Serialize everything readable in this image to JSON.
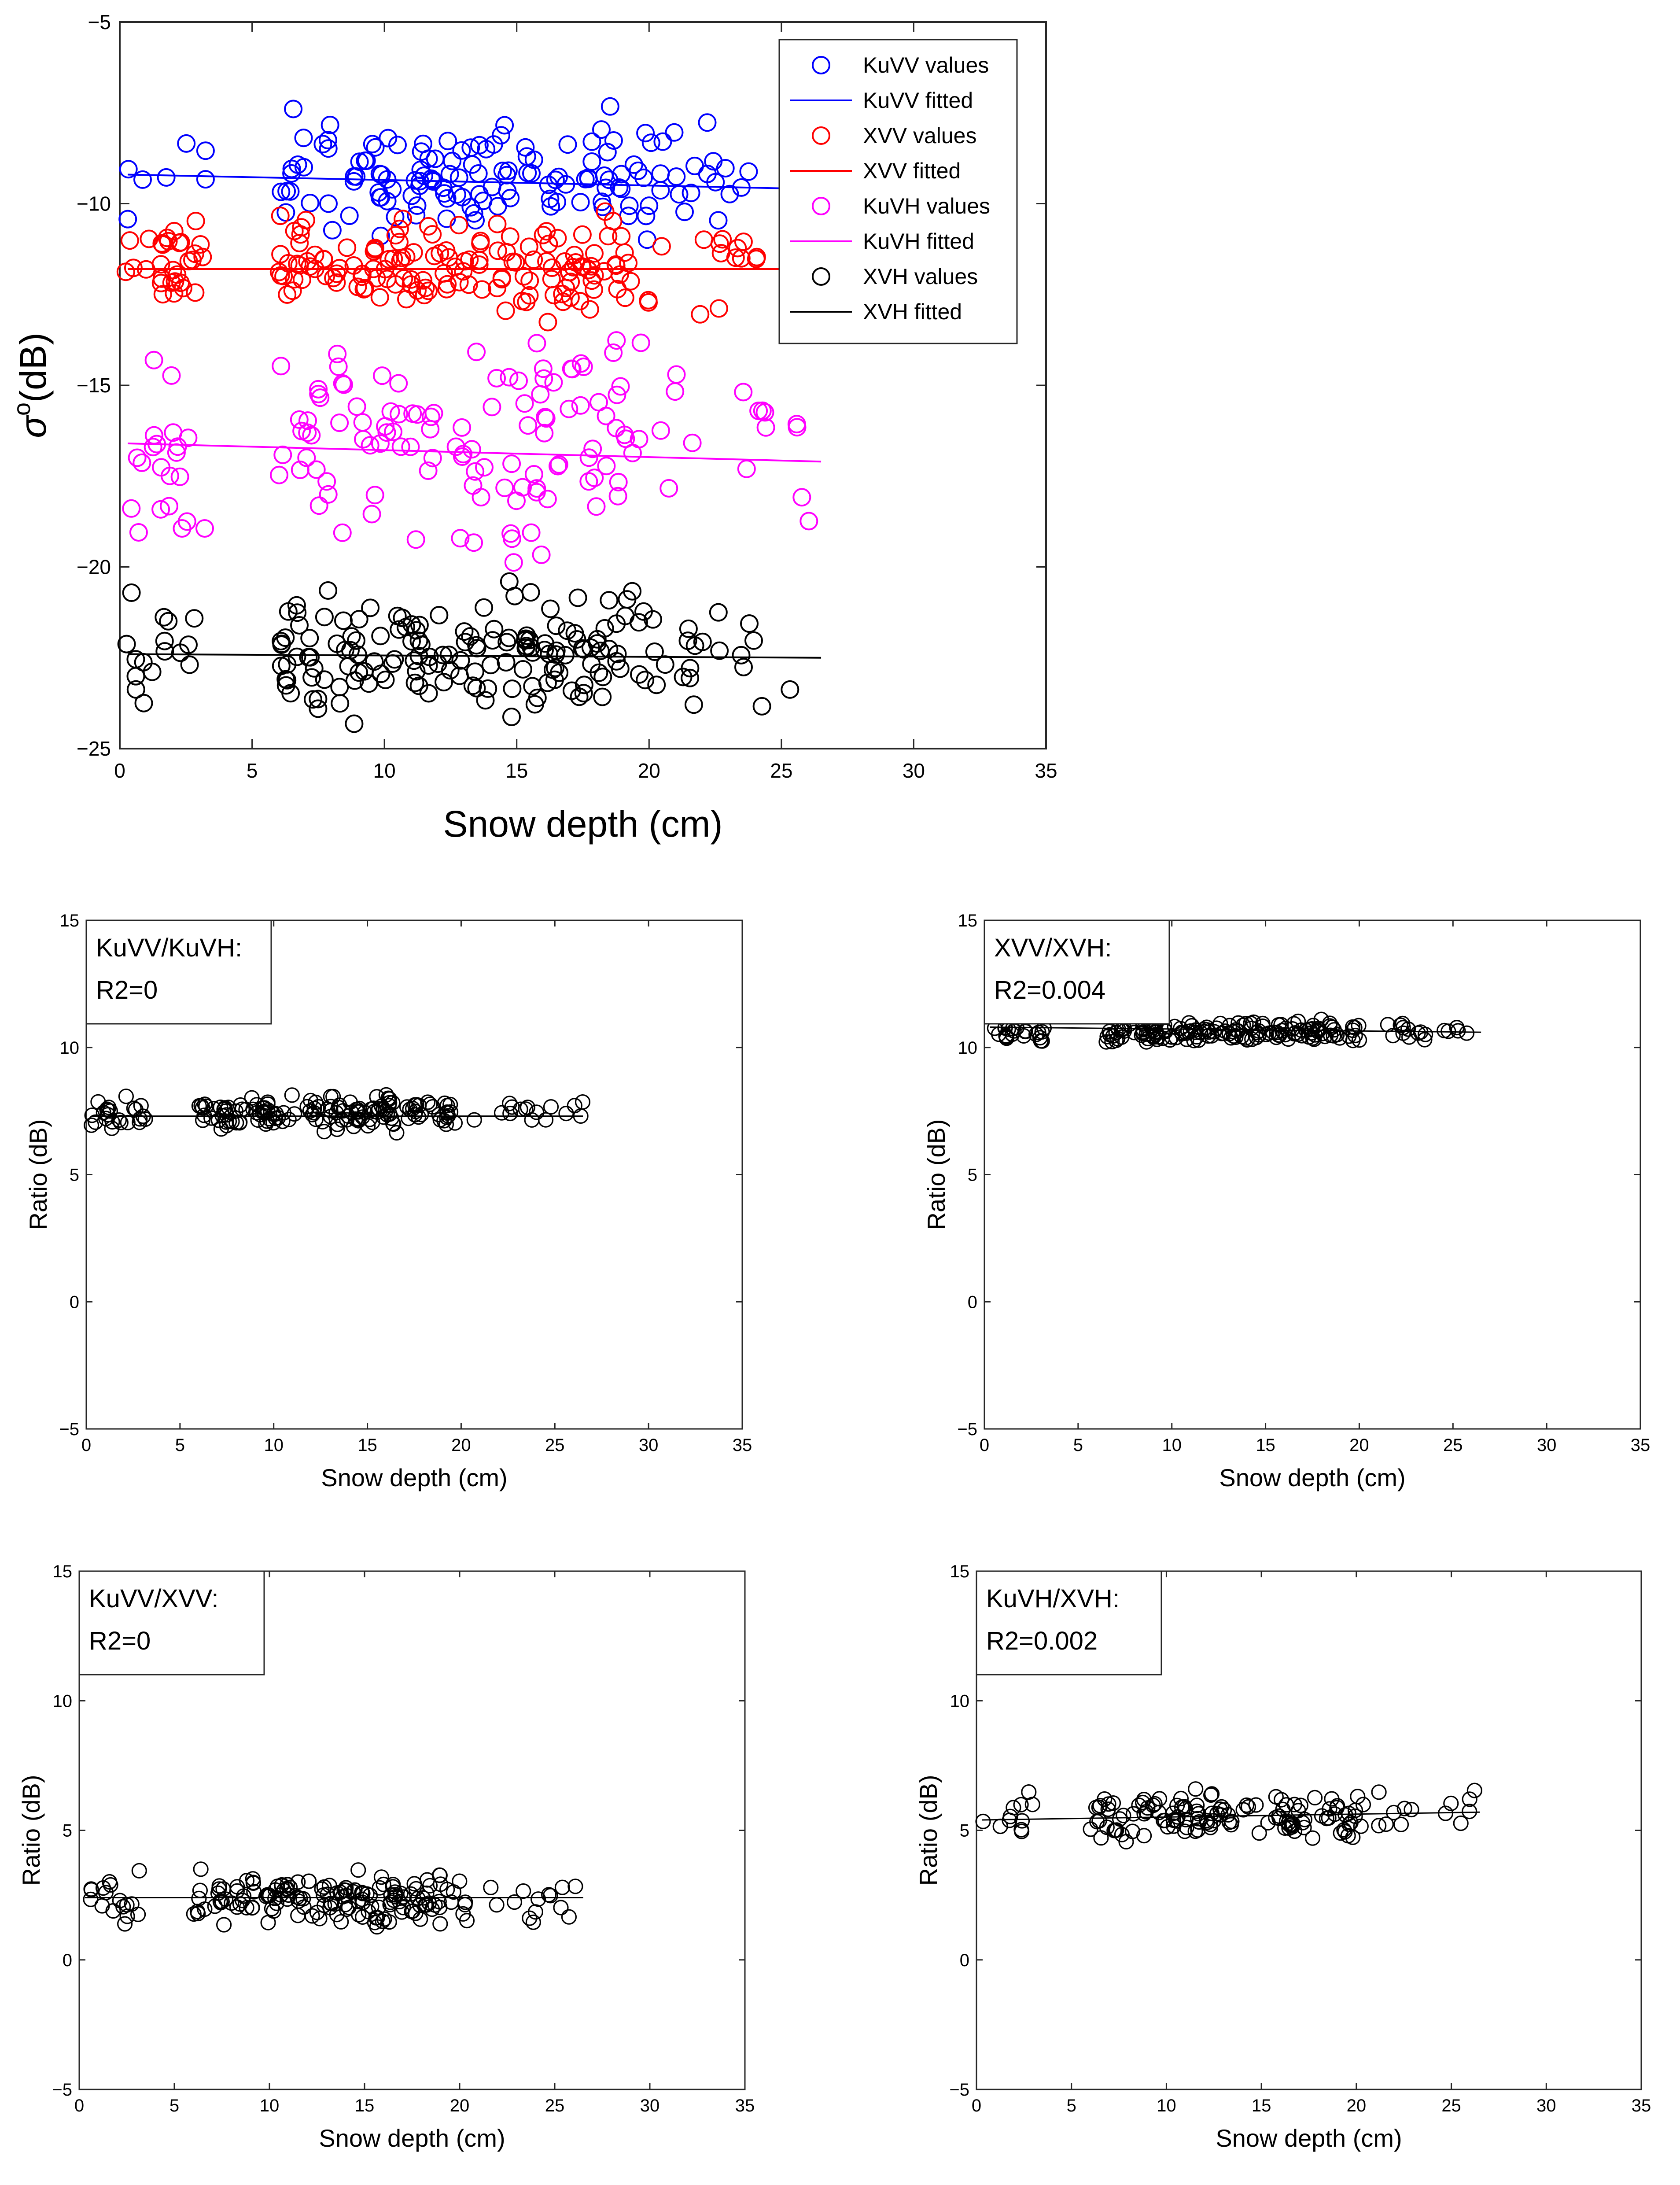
{
  "chart_data": [
    {
      "id": "main",
      "type": "scatter",
      "xlabel": "Snow depth (cm)",
      "ylabel_symbol": "σ",
      "ylabel_superscript": "o",
      "ylabel_unit": "(dB)",
      "xlim": [
        0,
        35
      ],
      "ylim": [
        -25,
        -5
      ],
      "xticks": [
        "0",
        "5",
        "10",
        "15",
        "20",
        "25",
        "30",
        "35"
      ],
      "yticks": [
        "-25",
        "-20",
        "-15",
        "-10",
        "-5"
      ],
      "legend_position": "top-right",
      "colors": {
        "KuVV": "#0000ff",
        "XVV": "#ff0000",
        "KuVH": "#ff00ff",
        "XVH": "#000000"
      },
      "legend": [
        "KuVV values",
        "KuVV fitted",
        "XVV values",
        "XVV fitted",
        "KuVH values",
        "KuVH fitted",
        "XVH values",
        "XVH fitted"
      ],
      "series": [
        {
          "name": "KuVV values",
          "key": "KuVV",
          "kind": "points",
          "x_range": [
            0.3,
            24
          ],
          "y_mean": -9.3,
          "y_spread": 2.2,
          "n": 150,
          "seed": 11
        },
        {
          "name": "KuVV fitted",
          "key": "KuVV",
          "kind": "line",
          "x": [
            0.3,
            26.5
          ],
          "y": [
            -9.2,
            -9.6
          ]
        },
        {
          "name": "XVV values",
          "key": "XVV",
          "kind": "points",
          "x_range": [
            0.2,
            24.1
          ],
          "y_mean": -11.7,
          "y_spread": 1.8,
          "n": 190,
          "seed": 23
        },
        {
          "name": "XVV fitted",
          "key": "XVV",
          "kind": "line",
          "x": [
            0.3,
            26.5
          ],
          "y": [
            -11.8,
            -11.8
          ]
        },
        {
          "name": "KuVH values",
          "key": "KuVH",
          "kind": "points",
          "x_range": [
            0.3,
            26.5
          ],
          "y_mean": -16.5,
          "y_spread": 4.0,
          "n": 150,
          "seed": 37
        },
        {
          "name": "KuVH fitted",
          "key": "KuVH",
          "kind": "line",
          "x": [
            0.3,
            26.5
          ],
          "y": [
            -16.6,
            -17.1
          ]
        },
        {
          "name": "XVH values",
          "key": "XVH",
          "kind": "points",
          "x_range": [
            0.2,
            26.5
          ],
          "y_mean": -22.4,
          "y_spread": 2.4,
          "n": 190,
          "seed": 53
        },
        {
          "name": "XVH fitted",
          "key": "XVH",
          "kind": "line",
          "x": [
            0.3,
            26.5
          ],
          "y": [
            -22.4,
            -22.5
          ]
        }
      ]
    },
    {
      "id": "kuvv_kuvh",
      "type": "scatter",
      "annotation_name": "KuVV/KuVH:",
      "annotation_r2": "R2=0",
      "xlabel": "Snow depth (cm)",
      "ylabel": "Ratio (dB)",
      "xlim": [
        0,
        35
      ],
      "ylim": [
        -5,
        15
      ],
      "xticks": [
        "0",
        "5",
        "10",
        "15",
        "20",
        "25",
        "30",
        "35"
      ],
      "yticks": [
        "-5",
        "0",
        "5",
        "10",
        "15"
      ],
      "series": [
        {
          "name": "values",
          "kind": "points",
          "x_range": [
            0.2,
            26.5
          ],
          "y_mean": 7.4,
          "y_spread": 1.0,
          "n": 190,
          "seed": 71
        },
        {
          "name": "fitted",
          "kind": "line",
          "x": [
            0.3,
            26.5
          ],
          "y": [
            7.3,
            7.3
          ]
        }
      ]
    },
    {
      "id": "xvv_xvh",
      "type": "scatter",
      "annotation_name": "XVV/XVH:",
      "annotation_r2": "R2=0.004",
      "xlabel": "Snow depth (cm)",
      "ylabel": "Ratio (dB)",
      "xlim": [
        0,
        35
      ],
      "ylim": [
        -5,
        15
      ],
      "xticks": [
        "0",
        "5",
        "10",
        "15",
        "20",
        "25",
        "30",
        "35"
      ],
      "yticks": [
        "-5",
        "0",
        "5",
        "10",
        "15"
      ],
      "series": [
        {
          "name": "values",
          "kind": "points",
          "x_range": [
            0.2,
            26.5
          ],
          "y_mean": 10.6,
          "y_spread": 0.6,
          "n": 190,
          "seed": 89
        },
        {
          "name": "fitted",
          "kind": "line",
          "x": [
            0.3,
            26.5
          ],
          "y": [
            10.8,
            10.6
          ]
        }
      ]
    },
    {
      "id": "kuvv_xvv",
      "type": "scatter",
      "annotation_name": "KuVV/XVV:",
      "annotation_r2": "R2=0",
      "xlabel": "Snow depth (cm)",
      "ylabel": "Ratio (dB)",
      "xlim": [
        0,
        35
      ],
      "ylim": [
        -5,
        15
      ],
      "xticks": [
        "0",
        "5",
        "10",
        "15",
        "20",
        "25",
        "30",
        "35"
      ],
      "yticks": [
        "-5",
        "0",
        "5",
        "10",
        "15"
      ],
      "series": [
        {
          "name": "values",
          "kind": "points",
          "x_range": [
            0.2,
            26.5
          ],
          "y_mean": 2.3,
          "y_spread": 1.3,
          "n": 190,
          "seed": 103
        },
        {
          "name": "fitted",
          "kind": "line",
          "x": [
            0.3,
            26.5
          ],
          "y": [
            2.4,
            2.4
          ]
        }
      ]
    },
    {
      "id": "kuvh_xvh",
      "type": "scatter",
      "annotation_name": "KuVH/XVH:",
      "annotation_r2": "R2=0.002",
      "xlabel": "Snow depth (cm)",
      "ylabel": "Ratio (dB)",
      "xlim": [
        0,
        35
      ],
      "ylim": [
        -5,
        15
      ],
      "xticks": [
        "0",
        "5",
        "10",
        "15",
        "20",
        "25",
        "30",
        "35"
      ],
      "yticks": [
        "-5",
        "0",
        "5",
        "10",
        "15"
      ],
      "series": [
        {
          "name": "values",
          "kind": "points",
          "x_range": [
            0.2,
            26.5
          ],
          "y_mean": 5.6,
          "y_spread": 1.4,
          "n": 150,
          "seed": 127
        },
        {
          "name": "fitted",
          "kind": "line",
          "x": [
            0.3,
            26.5
          ],
          "y": [
            5.4,
            5.7
          ]
        }
      ]
    }
  ]
}
